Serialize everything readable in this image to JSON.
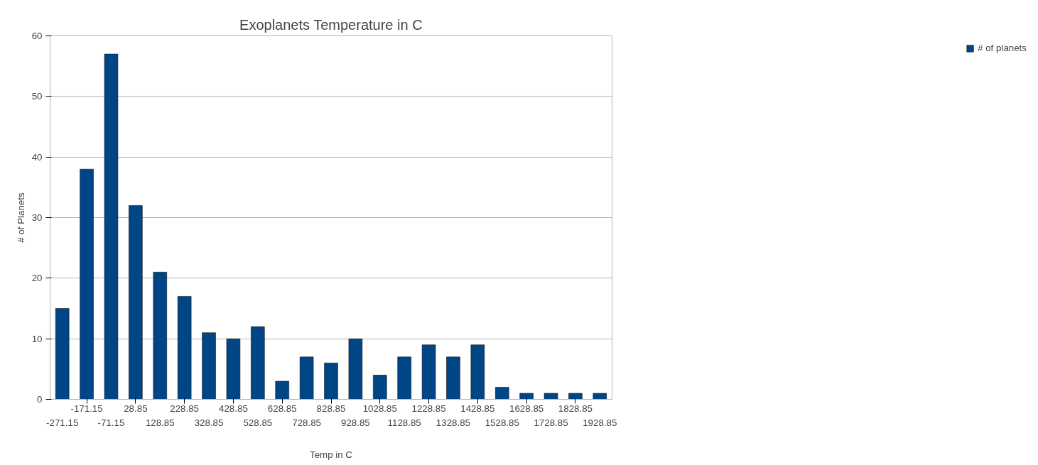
{
  "chart_data": {
    "type": "bar",
    "title": "Exoplanets Temperature in C",
    "xlabel": "Temp in C",
    "ylabel": "# of Planets",
    "categories": [
      "-271.15",
      "-171.15",
      "-71.15",
      "28.85",
      "128.85",
      "228.85",
      "328.85",
      "428.85",
      "528.85",
      "628.85",
      "728.85",
      "828.85",
      "928.85",
      "1028.85",
      "1128.85",
      "1228.85",
      "1328.85",
      "1428.85",
      "1528.85",
      "1628.85",
      "1728.85",
      "1828.85",
      "1928.85"
    ],
    "series": [
      {
        "name": "# of planets",
        "color": "#004586",
        "values": [
          15,
          38,
          57,
          32,
          21,
          17,
          11,
          10,
          12,
          3,
          7,
          6,
          10,
          4,
          7,
          9,
          7,
          9,
          2,
          1,
          1,
          1,
          1
        ]
      }
    ],
    "ylim": [
      0,
      60
    ],
    "yticks": [
      0,
      10,
      20,
      30,
      40,
      50,
      60
    ],
    "grid": "y",
    "legend": "right"
  }
}
